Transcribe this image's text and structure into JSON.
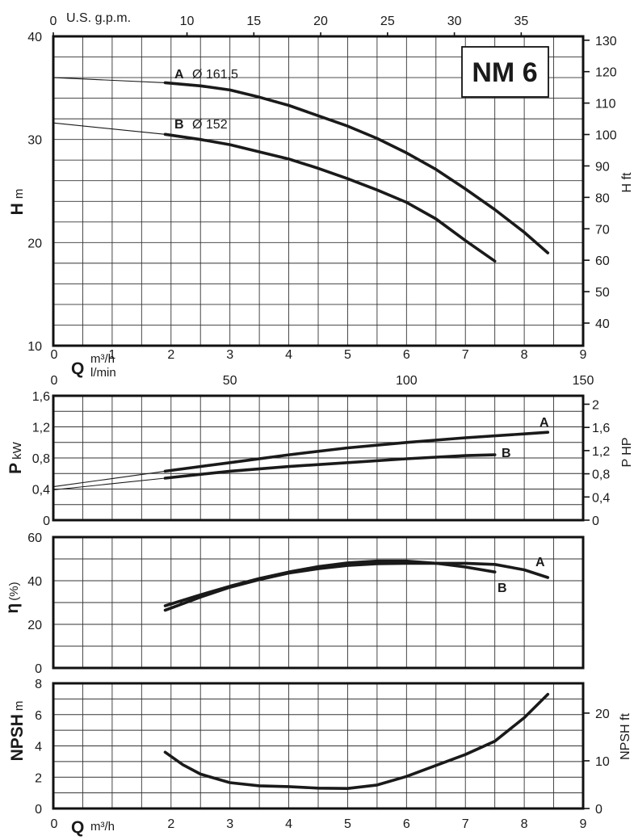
{
  "chart_data": [
    {
      "type": "line",
      "panel": "head",
      "model_label": "NM 6",
      "xlabel": "Q m³/h",
      "xlabel_main": "Q",
      "xlabel_unit": "m³/h",
      "xlabel_secondary_unit": "l/min",
      "x2label": "U.S. g.p.m.",
      "ylabel": "H m",
      "ylabel_main": "H",
      "ylabel_unit": "m",
      "y2label": "H ft",
      "xlim": [
        0,
        9
      ],
      "ylim": [
        10,
        40
      ],
      "x_ticks": [
        "0",
        "1",
        "2",
        "3",
        "4",
        "5",
        "6",
        "7",
        "8",
        "9"
      ],
      "y_ticks": [
        "10",
        "20",
        "30",
        "40"
      ],
      "x2_ticks": [
        "0",
        "10",
        "15",
        "20",
        "25",
        "30",
        "35"
      ],
      "y2_ticks": [
        "40",
        "50",
        "60",
        "70",
        "80",
        "90",
        "100",
        "110",
        "120",
        "130"
      ],
      "series": [
        {
          "name": "A",
          "label": "A",
          "diameter": "Ø 161,5",
          "x": [
            1.9,
            2.5,
            3,
            3.5,
            4,
            4.5,
            5,
            5.5,
            6,
            6.5,
            7,
            7.5,
            8,
            8.4
          ],
          "y": [
            35.5,
            35.2,
            34.8,
            34.1,
            33.3,
            32.3,
            31.3,
            30.1,
            28.7,
            27.1,
            25.2,
            23.2,
            21.0,
            19.0
          ],
          "ext_x": [
            0,
            1.9
          ],
          "ext_y": [
            36.0,
            35.5
          ]
        },
        {
          "name": "B",
          "label": "B",
          "diameter": "Ø 152",
          "x": [
            1.9,
            2.5,
            3,
            3.5,
            4,
            4.5,
            5,
            5.5,
            6,
            6.5,
            7,
            7.5
          ],
          "y": [
            30.5,
            30.0,
            29.5,
            28.8,
            28.1,
            27.2,
            26.2,
            25.1,
            23.9,
            22.3,
            20.2,
            18.2
          ],
          "ext_x": [
            0,
            1.9
          ],
          "ext_y": [
            31.6,
            30.5
          ]
        }
      ]
    },
    {
      "type": "line",
      "panel": "power",
      "ylabel": "P kW",
      "ylabel_main": "P",
      "ylabel_unit": "kW",
      "y2label": "P HP",
      "xlim": [
        0,
        150
      ],
      "ylim": [
        0,
        1.6
      ],
      "x_ticks": [
        "0",
        "50",
        "100",
        "150"
      ],
      "y_ticks": [
        "0",
        "0,4",
        "0,8",
        "1,2",
        "1,6"
      ],
      "y2_ticks": [
        "0",
        "0,4",
        "0,8",
        "1,2",
        "1,6",
        "2"
      ],
      "series": [
        {
          "name": "A",
          "label": "A",
          "x": [
            1.9,
            3,
            4,
            5,
            6,
            7,
            8,
            8.4
          ],
          "y": [
            0.63,
            0.74,
            0.84,
            0.93,
            1.0,
            1.06,
            1.11,
            1.13
          ],
          "ext_x": [
            0,
            1.9
          ],
          "ext_y": [
            0.43,
            0.63
          ]
        },
        {
          "name": "B",
          "label": "B",
          "x": [
            1.9,
            3,
            4,
            5,
            6,
            7,
            7.5
          ],
          "y": [
            0.54,
            0.63,
            0.69,
            0.74,
            0.79,
            0.83,
            0.84
          ],
          "ext_x": [
            0,
            1.9
          ],
          "ext_y": [
            0.39,
            0.54
          ]
        }
      ]
    },
    {
      "type": "line",
      "panel": "efficiency",
      "ylabel": "η (%)",
      "ylabel_main": "η",
      "ylabel_unit": "(%)",
      "xlim": [
        0,
        9
      ],
      "ylim": [
        0,
        60
      ],
      "y_ticks": [
        "0",
        "20",
        "40",
        "60"
      ],
      "series": [
        {
          "name": "A",
          "label": "A",
          "x": [
            1.9,
            2.5,
            3,
            3.5,
            4,
            4.5,
            5,
            5.5,
            6,
            6.5,
            7,
            7.5,
            8,
            8.4
          ],
          "y": [
            26.5,
            32.5,
            37,
            40.5,
            43.5,
            45.5,
            47,
            47.8,
            48,
            48,
            48,
            47.5,
            45,
            41.5
          ]
        },
        {
          "name": "B",
          "label": "B",
          "x": [
            1.9,
            2.5,
            3,
            3.5,
            4,
            4.5,
            5,
            5.5,
            6,
            6.5,
            7,
            7.5
          ],
          "y": [
            28.5,
            33.5,
            37.5,
            41,
            44,
            46.5,
            48.2,
            49,
            49,
            48,
            46.3,
            44
          ]
        }
      ]
    },
    {
      "type": "line",
      "panel": "npsh",
      "ylabel": "NPSH m",
      "ylabel_main": "NPSH",
      "ylabel_unit": "m",
      "y2label": "NPSH ft",
      "xlabel": "Q m³/h",
      "xlabel_main": "Q",
      "xlabel_unit": "m³/h",
      "xlim": [
        0,
        9
      ],
      "ylim": [
        0,
        8
      ],
      "x_ticks": [
        "0",
        "2",
        "3",
        "4",
        "5",
        "6",
        "7",
        "8",
        "9"
      ],
      "y_ticks": [
        "0",
        "2",
        "4",
        "6",
        "8"
      ],
      "y2_ticks": [
        "0",
        "10",
        "20"
      ],
      "series": [
        {
          "name": "NPSH",
          "x": [
            1.9,
            2.2,
            2.5,
            3,
            3.5,
            4,
            4.5,
            5,
            5.5,
            6,
            6.5,
            7,
            7.5,
            8,
            8.4
          ],
          "y": [
            3.6,
            2.8,
            2.2,
            1.65,
            1.45,
            1.4,
            1.3,
            1.28,
            1.5,
            2.05,
            2.75,
            3.45,
            4.3,
            5.8,
            7.3
          ]
        }
      ]
    }
  ]
}
